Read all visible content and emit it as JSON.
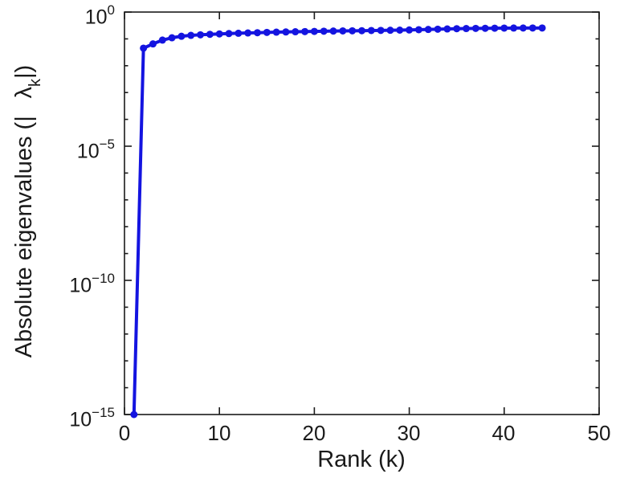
{
  "figure": {
    "background": "#ffffff",
    "axis_color": "#1a1a1a"
  },
  "chart_data": {
    "type": "line",
    "title": "",
    "xlabel": "Rank (k)",
    "ylabel_parts": {
      "prefix": "Absolute eigenvalues (|",
      "symbol": "λ",
      "subscript": "k",
      "suffix": "|)"
    },
    "yscale": "log",
    "grid": false,
    "legend": "none",
    "line_color": "#1414e0",
    "marker": "circle",
    "xlim": [
      0,
      50
    ],
    "ylim_exp": [
      -15,
      0
    ],
    "xticks": [
      0,
      10,
      20,
      30,
      40,
      50
    ],
    "ytick_mantissa": "10",
    "ytick_exponents": [
      "0",
      "−5",
      "−10",
      "−15"
    ],
    "x": [
      1,
      2,
      3,
      4,
      5,
      6,
      7,
      8,
      9,
      10,
      11,
      12,
      13,
      14,
      15,
      16,
      17,
      18,
      19,
      20,
      21,
      22,
      23,
      24,
      25,
      26,
      27,
      28,
      29,
      30,
      31,
      32,
      33,
      34,
      35,
      36,
      37,
      38,
      39,
      40,
      41,
      42,
      43,
      44
    ],
    "values": [
      1e-15,
      0.045,
      0.065,
      0.09,
      0.11,
      0.125,
      0.135,
      0.142,
      0.148,
      0.153,
      0.158,
      0.162,
      0.166,
      0.17,
      0.174,
      0.178,
      0.181,
      0.184,
      0.187,
      0.19,
      0.193,
      0.196,
      0.198,
      0.2,
      0.202,
      0.205,
      0.207,
      0.21,
      0.212,
      0.215,
      0.22,
      0.225,
      0.23,
      0.235,
      0.24,
      0.243,
      0.246,
      0.248,
      0.25,
      0.252,
      0.253,
      0.254,
      0.255,
      0.255
    ]
  }
}
